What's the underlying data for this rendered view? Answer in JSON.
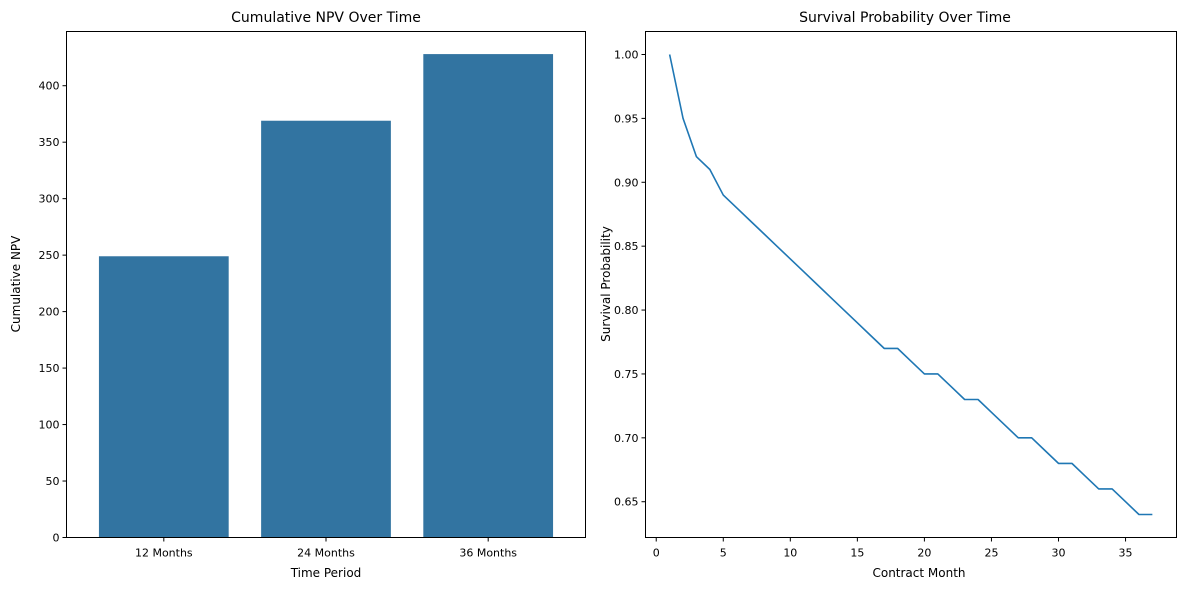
{
  "chart_data": [
    {
      "type": "bar",
      "title": "Cumulative NPV Over Time",
      "xlabel": "Time Period",
      "ylabel": "Cumulative NPV",
      "categories": [
        "12 Months",
        "24 Months",
        "36 Months"
      ],
      "values": [
        249,
        369,
        428
      ],
      "ylim": [
        0,
        448
      ],
      "yticks": [
        0,
        50,
        100,
        150,
        200,
        250,
        300,
        350,
        400
      ],
      "grid": false,
      "color": "#3274a1"
    },
    {
      "type": "line",
      "title": "Survival Probability Over Time",
      "xlabel": "Contract Month",
      "ylabel": "Survival Probability",
      "x": [
        1,
        2,
        3,
        4,
        5,
        6,
        7,
        8,
        9,
        10,
        11,
        12,
        13,
        14,
        15,
        16,
        17,
        18,
        19,
        20,
        21,
        22,
        23,
        24,
        25,
        26,
        27,
        28,
        29,
        30,
        31,
        32,
        33,
        34,
        35,
        36,
        37
      ],
      "y": [
        1.0,
        0.95,
        0.92,
        0.91,
        0.89,
        0.88,
        0.87,
        0.86,
        0.85,
        0.84,
        0.83,
        0.82,
        0.81,
        0.8,
        0.79,
        0.78,
        0.77,
        0.77,
        0.76,
        0.75,
        0.75,
        0.74,
        0.73,
        0.73,
        0.72,
        0.71,
        0.7,
        0.7,
        0.69,
        0.68,
        0.68,
        0.67,
        0.66,
        0.66,
        0.65,
        0.64,
        0.64
      ],
      "xlim": [
        -0.8,
        38.8
      ],
      "ylim": [
        0.622,
        1.018
      ],
      "xticks": [
        0,
        5,
        10,
        15,
        20,
        25,
        30,
        35
      ],
      "yticks": [
        0.65,
        0.7,
        0.75,
        0.8,
        0.85,
        0.9,
        0.95,
        1.0
      ],
      "grid": false,
      "color": "#1f77b4"
    }
  ]
}
